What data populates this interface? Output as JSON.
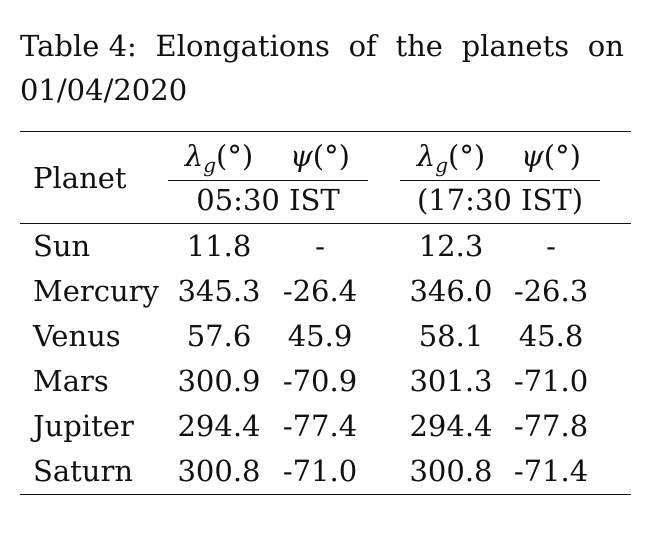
{
  "caption": {
    "line1_words": [
      "Table 4:",
      "Elongations",
      "of",
      "the",
      "planets",
      "on"
    ],
    "line2": "01/04/2020"
  },
  "table": {
    "planet_header": "Planet",
    "col_groups": [
      {
        "time": "05:30 IST",
        "lambda": "λ",
        "lambda_sub": "g",
        "lambda_unit": "(°)",
        "psi": "ψ",
        "psi_unit": "(°)"
      },
      {
        "time": "(17:30 IST)",
        "lambda": "λ",
        "lambda_sub": "g",
        "lambda_unit": "(°)",
        "psi": "ψ",
        "psi_unit": "(°)"
      }
    ],
    "rows": [
      {
        "planet": "Sun",
        "lg1": "11.8",
        "psi1": "-",
        "lg2": "12.3",
        "psi2": "-"
      },
      {
        "planet": "Mercury",
        "lg1": "345.3",
        "psi1": "-26.4",
        "lg2": "346.0",
        "psi2": "-26.3"
      },
      {
        "planet": "Venus",
        "lg1": "57.6",
        "psi1": "45.9",
        "lg2": "58.1",
        "psi2": "45.8"
      },
      {
        "planet": "Mars",
        "lg1": "300.9",
        "psi1": "-70.9",
        "lg2": "301.3",
        "psi2": "-71.0"
      },
      {
        "planet": "Jupiter",
        "lg1": "294.4",
        "psi1": "-77.4",
        "lg2": "294.4",
        "psi2": "-77.8"
      },
      {
        "planet": "Saturn",
        "lg1": "300.8",
        "psi1": "-71.0",
        "lg2": "300.8",
        "psi2": "-71.4"
      }
    ]
  }
}
